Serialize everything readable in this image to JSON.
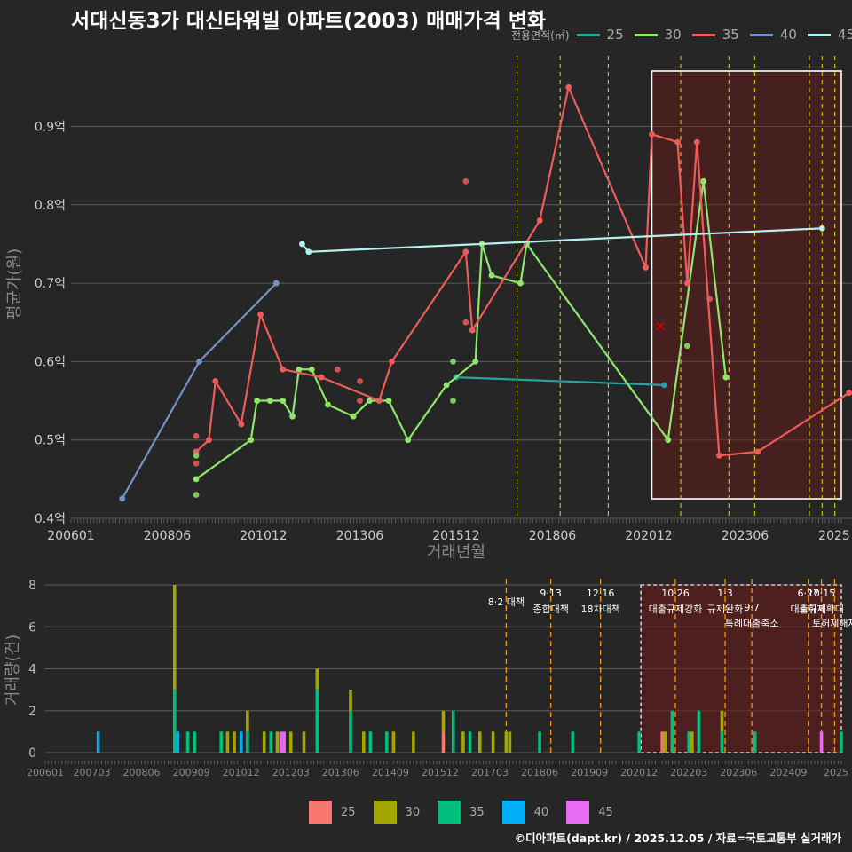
{
  "title": "서대신동3가 대신타워빌 아파트(2003) 매매가격 변화",
  "footer": "©디아파트(dapt.kr) / 2025.12.05 / 자료=국토교통부 실거래가",
  "legend_top": {
    "title": "전용면적(㎡)",
    "items": [
      {
        "label": "25",
        "color": "#2aa1a0"
      },
      {
        "label": "30",
        "color": "#8ee66a"
      },
      {
        "label": "35",
        "color": "#ef5a5a"
      },
      {
        "label": "40",
        "color": "#7391c4"
      },
      {
        "label": "45",
        "color": "#b4f0ee"
      }
    ]
  },
  "legend_bottom": {
    "items": [
      {
        "label": "25",
        "color": "#f8766d"
      },
      {
        "label": "30",
        "color": "#a3a500"
      },
      {
        "label": "35",
        "color": "#00bf7d"
      },
      {
        "label": "40",
        "color": "#00b0f6"
      },
      {
        "label": "45",
        "color": "#e76bf3"
      }
    ]
  },
  "chart_data": [
    {
      "type": "line",
      "ylabel": "평균가(원)",
      "xlabel": "거래년월",
      "ylim": [
        0.4,
        0.99
      ],
      "yticks": [
        0.4,
        0.5,
        0.6,
        0.7,
        0.8,
        0.9
      ],
      "ytick_labels": [
        "0.4억",
        "0.5억",
        "0.6억",
        "0.7억",
        "0.8억",
        "0.9억"
      ],
      "xlim": [
        2006.0,
        2026.0
      ],
      "xticks": [
        2006.0,
        2008.5,
        2011.0,
        2013.5,
        2016.0,
        2018.5,
        2021.0,
        2023.5,
        2026.0
      ],
      "xtick_labels": [
        "200601",
        "200806",
        "201012",
        "201306",
        "201512",
        "201806",
        "202012",
        "202306",
        "2025"
      ],
      "policy_lines": [
        2017.58,
        2018.7,
        2019.95,
        2021.83,
        2023.08,
        2023.75,
        2025.17,
        2025.5,
        2025.83
      ],
      "highlight_range": [
        2021.08,
        2026.3
      ],
      "series": [
        {
          "name": "25",
          "color": "#2aa1a0",
          "points": [
            [
              2016.0,
              0.58
            ],
            [
              2021.4,
              0.57
            ]
          ]
        },
        {
          "name": "30",
          "color": "#8ee66a",
          "points": [
            [
              2009.25,
              0.45
            ],
            [
              2010.67,
              0.5
            ],
            [
              2010.83,
              0.55
            ],
            [
              2011.17,
              0.55
            ],
            [
              2011.5,
              0.55
            ],
            [
              2011.75,
              0.53
            ],
            [
              2011.92,
              0.59
            ],
            [
              2012.25,
              0.59
            ],
            [
              2012.67,
              0.545
            ],
            [
              2013.33,
              0.53
            ],
            [
              2013.75,
              0.55
            ],
            [
              2014.25,
              0.55
            ],
            [
              2014.75,
              0.5
            ],
            [
              2015.75,
              0.57
            ],
            [
              2016.5,
              0.6
            ],
            [
              2016.67,
              0.75
            ],
            [
              2016.92,
              0.71
            ],
            [
              2017.67,
              0.7
            ],
            [
              2017.83,
              0.75
            ],
            [
              2021.5,
              0.5
            ],
            [
              2022.42,
              0.83
            ],
            [
              2023.0,
              0.58
            ]
          ]
        },
        {
          "name": "35",
          "color": "#ef5a5a",
          "points": [
            [
              2009.25,
              0.485
            ],
            [
              2009.58,
              0.5
            ],
            [
              2009.75,
              0.575
            ],
            [
              2010.42,
              0.52
            ],
            [
              2010.92,
              0.66
            ],
            [
              2011.5,
              0.59
            ],
            [
              2012.5,
              0.58
            ],
            [
              2014.0,
              0.55
            ],
            [
              2014.33,
              0.6
            ],
            [
              2016.25,
              0.74
            ],
            [
              2016.42,
              0.64
            ],
            [
              2018.17,
              0.78
            ],
            [
              2018.92,
              0.95
            ],
            [
              2020.92,
              0.72
            ],
            [
              2021.08,
              0.89
            ],
            [
              2021.75,
              0.88
            ],
            [
              2022.0,
              0.7
            ],
            [
              2022.25,
              0.88
            ],
            [
              2022.83,
              0.48
            ],
            [
              2023.83,
              0.485
            ],
            [
              2026.2,
              0.56
            ]
          ]
        },
        {
          "name": "40",
          "color": "#7391c4",
          "points": [
            [
              2007.33,
              0.425
            ],
            [
              2009.33,
              0.6
            ],
            [
              2011.33,
              0.7
            ]
          ]
        },
        {
          "name": "45",
          "color": "#b4f0ee",
          "points": [
            [
              2012.0,
              0.75
            ],
            [
              2012.17,
              0.74
            ],
            [
              2025.5,
              0.77
            ]
          ]
        }
      ],
      "scatter_points": [
        {
          "x": 2009.25,
          "y": 0.505,
          "series": "35"
        },
        {
          "x": 2009.25,
          "y": 0.47,
          "series": "35"
        },
        {
          "x": 2009.25,
          "y": 0.48,
          "series": "30"
        },
        {
          "x": 2009.25,
          "y": 0.43,
          "series": "30"
        },
        {
          "x": 2012.92,
          "y": 0.59,
          "series": "35"
        },
        {
          "x": 2013.5,
          "y": 0.575,
          "series": "35"
        },
        {
          "x": 2013.5,
          "y": 0.55,
          "series": "35"
        },
        {
          "x": 2015.92,
          "y": 0.6,
          "series": "30"
        },
        {
          "x": 2015.92,
          "y": 0.55,
          "series": "30"
        },
        {
          "x": 2016.25,
          "y": 0.83,
          "series": "35"
        },
        {
          "x": 2016.25,
          "y": 0.65,
          "series": "35"
        },
        {
          "x": 2022.0,
          "y": 0.62,
          "series": "30"
        },
        {
          "x": 2022.58,
          "y": 0.68,
          "series": "35"
        }
      ],
      "cross_marker": {
        "x": 2021.3,
        "y": 0.645
      }
    },
    {
      "type": "bar",
      "ylabel": "거래량(건)",
      "ylim": [
        0,
        8
      ],
      "yticks": [
        0,
        2,
        4,
        6,
        8
      ],
      "ytick_labels": [
        "0",
        "2",
        "4",
        "6",
        "8"
      ],
      "xlim": [
        2006.0,
        2026.0
      ],
      "xticks": [
        2006.0,
        2007.17,
        2008.42,
        2009.67,
        2010.92,
        2012.17,
        2013.42,
        2014.67,
        2015.92,
        2017.17,
        2018.42,
        2019.67,
        2020.92,
        2022.17,
        2023.42,
        2024.67,
        2025.92
      ],
      "xtick_labels": [
        "200601",
        "200703",
        "200806",
        "200909",
        "201012",
        "201203",
        "201306",
        "201409",
        "201512",
        "201703",
        "201806",
        "201909",
        "202012",
        "202203",
        "202306",
        "202409",
        "2025"
      ],
      "highlight_range": [
        2020.92,
        2026.0
      ],
      "policy_events": [
        {
          "x": 2017.58,
          "date": "",
          "name": "8·2 대책"
        },
        {
          "x": 2018.7,
          "date": "9·13",
          "name": "종합대책"
        },
        {
          "x": 2019.95,
          "date": "12·16",
          "name": "18차대책"
        },
        {
          "x": 2021.83,
          "date": "10·26",
          "name": "대출규제강화"
        },
        {
          "x": 2023.08,
          "date": "1·3",
          "name": "규제완화"
        },
        {
          "x": 2023.75,
          "date": "9·7",
          "name": "특례대출축소"
        },
        {
          "x": 2025.17,
          "date": "6·27",
          "name": "대출규제"
        },
        {
          "x": 2025.5,
          "date": "10·15",
          "name": "토허제확대"
        },
        {
          "x": 2025.83,
          "date": "",
          "name": "토허제해제"
        }
      ],
      "bars": [
        {
          "x": 2007.33,
          "segments": [
            {
              "series": "40",
              "value": 1
            }
          ]
        },
        {
          "x": 2009.25,
          "segments": [
            {
              "series": "35",
              "value": 3
            },
            {
              "series": "30",
              "value": 5
            }
          ]
        },
        {
          "x": 2009.33,
          "segments": [
            {
              "series": "40",
              "value": 1
            }
          ]
        },
        {
          "x": 2009.58,
          "segments": [
            {
              "series": "35",
              "value": 1
            }
          ]
        },
        {
          "x": 2009.75,
          "segments": [
            {
              "series": "35",
              "value": 1
            }
          ]
        },
        {
          "x": 2010.42,
          "segments": [
            {
              "series": "35",
              "value": 1
            }
          ]
        },
        {
          "x": 2010.58,
          "segments": [
            {
              "series": "30",
              "value": 1
            }
          ]
        },
        {
          "x": 2010.75,
          "segments": [
            {
              "series": "30",
              "value": 1
            }
          ]
        },
        {
          "x": 2010.92,
          "segments": [
            {
              "series": "40",
              "value": 1
            }
          ]
        },
        {
          "x": 2011.08,
          "segments": [
            {
              "series": "35",
              "value": 1
            },
            {
              "series": "30",
              "value": 1
            }
          ]
        },
        {
          "x": 2011.5,
          "segments": [
            {
              "series": "30",
              "value": 1
            }
          ]
        },
        {
          "x": 2011.67,
          "segments": [
            {
              "series": "35",
              "value": 1
            }
          ]
        },
        {
          "x": 2011.83,
          "segments": [
            {
              "series": "30",
              "value": 1
            }
          ]
        },
        {
          "x": 2011.92,
          "segments": [
            {
              "series": "45",
              "value": 1
            }
          ]
        },
        {
          "x": 2012.0,
          "segments": [
            {
              "series": "45",
              "value": 1
            }
          ]
        },
        {
          "x": 2012.17,
          "segments": [
            {
              "series": "30",
              "value": 1
            }
          ]
        },
        {
          "x": 2012.5,
          "segments": [
            {
              "series": "30",
              "value": 1
            }
          ]
        },
        {
          "x": 2012.83,
          "segments": [
            {
              "series": "35",
              "value": 3
            },
            {
              "series": "30",
              "value": 1
            }
          ]
        },
        {
          "x": 2013.67,
          "segments": [
            {
              "series": "35",
              "value": 2
            },
            {
              "series": "30",
              "value": 1
            }
          ]
        },
        {
          "x": 2014.0,
          "segments": [
            {
              "series": "30",
              "value": 1
            }
          ]
        },
        {
          "x": 2014.17,
          "segments": [
            {
              "series": "35",
              "value": 1
            }
          ]
        },
        {
          "x": 2014.58,
          "segments": [
            {
              "series": "35",
              "value": 1
            }
          ]
        },
        {
          "x": 2014.75,
          "segments": [
            {
              "series": "30",
              "value": 1
            }
          ]
        },
        {
          "x": 2015.25,
          "segments": [
            {
              "series": "30",
              "value": 1
            }
          ]
        },
        {
          "x": 2016.0,
          "segments": [
            {
              "series": "25",
              "value": 1
            },
            {
              "series": "30",
              "value": 1
            }
          ]
        },
        {
          "x": 2016.25,
          "segments": [
            {
              "series": "35",
              "value": 2
            }
          ]
        },
        {
          "x": 2016.5,
          "segments": [
            {
              "series": "30",
              "value": 1
            }
          ]
        },
        {
          "x": 2016.67,
          "segments": [
            {
              "series": "35",
              "value": 1
            }
          ]
        },
        {
          "x": 2016.92,
          "segments": [
            {
              "series": "30",
              "value": 1
            }
          ]
        },
        {
          "x": 2017.25,
          "segments": [
            {
              "series": "30",
              "value": 1
            }
          ]
        },
        {
          "x": 2017.58,
          "segments": [
            {
              "series": "30",
              "value": 1
            }
          ]
        },
        {
          "x": 2017.67,
          "segments": [
            {
              "series": "30",
              "value": 1
            }
          ]
        },
        {
          "x": 2018.42,
          "segments": [
            {
              "series": "35",
              "value": 1
            }
          ]
        },
        {
          "x": 2019.25,
          "segments": [
            {
              "series": "35",
              "value": 1
            }
          ]
        },
        {
          "x": 2020.92,
          "segments": [
            {
              "series": "35",
              "value": 1
            }
          ]
        },
        {
          "x": 2021.5,
          "segments": [
            {
              "series": "25",
              "value": 1
            }
          ]
        },
        {
          "x": 2021.58,
          "segments": [
            {
              "series": "30",
              "value": 1
            }
          ]
        },
        {
          "x": 2021.75,
          "segments": [
            {
              "series": "35",
              "value": 2
            }
          ]
        },
        {
          "x": 2022.17,
          "segments": [
            {
              "series": "35",
              "value": 1
            }
          ]
        },
        {
          "x": 2022.25,
          "segments": [
            {
              "series": "30",
              "value": 1
            }
          ]
        },
        {
          "x": 2022.42,
          "segments": [
            {
              "series": "35",
              "value": 2
            }
          ]
        },
        {
          "x": 2023.0,
          "segments": [
            {
              "series": "35",
              "value": 1
            },
            {
              "series": "30",
              "value": 1
            }
          ]
        },
        {
          "x": 2023.83,
          "segments": [
            {
              "series": "35",
              "value": 1
            }
          ]
        },
        {
          "x": 2025.5,
          "segments": [
            {
              "series": "45",
              "value": 1
            }
          ]
        },
        {
          "x": 2026.0,
          "segments": [
            {
              "series": "35",
              "value": 1
            }
          ]
        }
      ]
    }
  ]
}
